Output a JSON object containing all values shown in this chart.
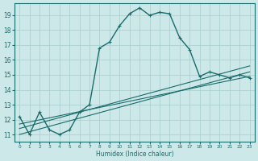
{
  "xlabel": "Humidex (Indice chaleur)",
  "x_values": [
    0,
    1,
    2,
    3,
    4,
    5,
    6,
    7,
    8,
    9,
    10,
    11,
    12,
    13,
    14,
    15,
    16,
    17,
    18,
    19,
    20,
    21,
    22,
    23
  ],
  "y_main": [
    12.2,
    11.0,
    12.5,
    11.3,
    11.0,
    11.3,
    12.5,
    13.0,
    16.8,
    17.2,
    18.3,
    19.1,
    19.5,
    19.0,
    19.2,
    19.1,
    17.5,
    16.7,
    14.9,
    15.2,
    15.0,
    14.8,
    15.0,
    14.8
  ],
  "trend_x0": 0,
  "trend_x1": 23,
  "trend_lines": [
    [
      11.0,
      15.2
    ],
    [
      11.4,
      15.6
    ],
    [
      11.7,
      14.9
    ]
  ],
  "ylim": [
    10.5,
    19.8
  ],
  "xlim": [
    -0.5,
    23.5
  ],
  "yticks": [
    11,
    12,
    13,
    14,
    15,
    16,
    17,
    18,
    19
  ],
  "xticks": [
    0,
    1,
    2,
    3,
    4,
    5,
    6,
    7,
    8,
    9,
    10,
    11,
    12,
    13,
    14,
    15,
    16,
    17,
    18,
    19,
    20,
    21,
    22,
    23
  ],
  "line_color": "#1a6b6b",
  "bg_color": "#cce8e8",
  "grid_color": "#a8cccc"
}
